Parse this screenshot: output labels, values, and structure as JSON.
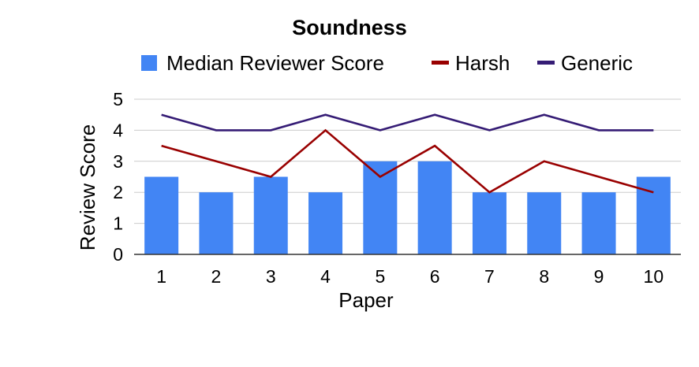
{
  "chart_data": {
    "type": "bar",
    "title": "Soundness",
    "xlabel": "Paper",
    "ylabel": "Review Score",
    "categories": [
      "1",
      "2",
      "3",
      "4",
      "5",
      "6",
      "7",
      "8",
      "9",
      "10"
    ],
    "ylim": [
      0,
      5
    ],
    "yticks": [
      "0",
      "1",
      "2",
      "3",
      "4",
      "5"
    ],
    "grid": true,
    "legend_position": "top",
    "series": [
      {
        "name": "Median Reviewer Score",
        "type": "bar",
        "color": "#4285f4",
        "values": [
          2.5,
          2,
          2.5,
          2,
          3,
          3,
          2,
          2,
          2,
          2.5
        ]
      },
      {
        "name": "Harsh",
        "type": "line",
        "color": "#990000",
        "values": [
          3.5,
          3,
          2.5,
          4,
          2.5,
          3.5,
          2,
          3,
          2.5,
          2
        ]
      },
      {
        "name": "Generic",
        "type": "line",
        "color": "#351c75",
        "values": [
          4.5,
          4,
          4,
          4.5,
          4,
          4.5,
          4,
          4.5,
          4,
          4
        ]
      }
    ]
  }
}
